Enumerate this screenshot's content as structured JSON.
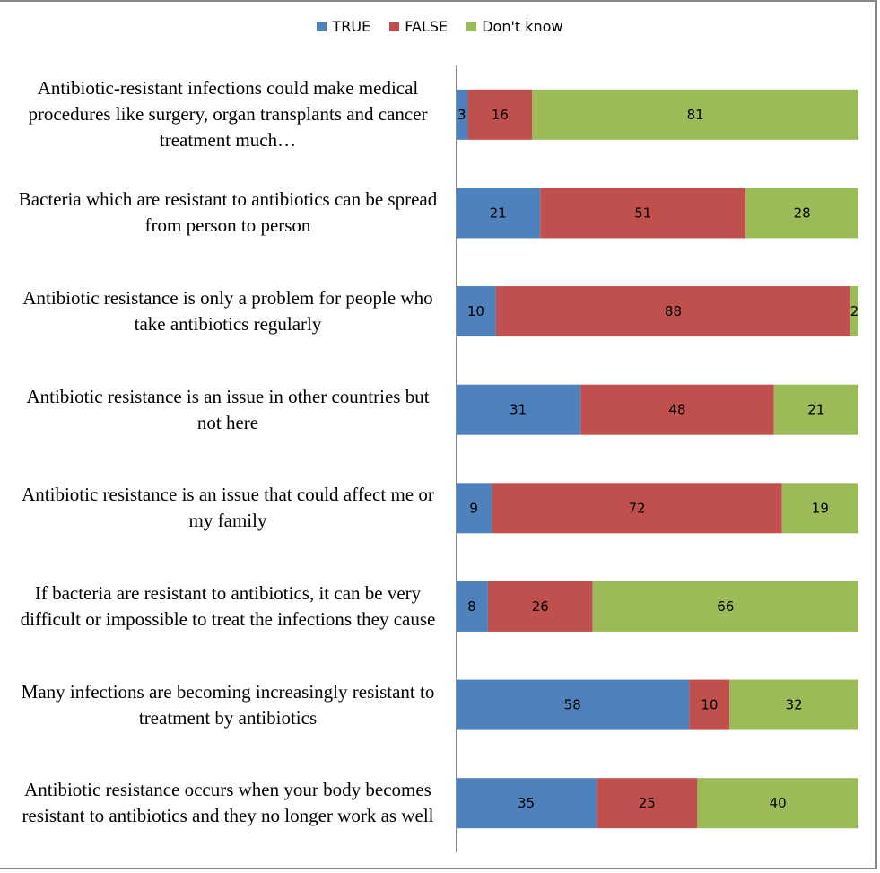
{
  "chart_data": {
    "type": "bar",
    "orientation": "horizontal",
    "stacked": "percent",
    "title": "",
    "xlabel": "",
    "ylabel": "",
    "xlim": [
      0,
      100
    ],
    "grid": false,
    "legend_position": "top-center",
    "categories": [
      "Antibiotic-resistant infections could make medical procedures like surgery, organ transplants and cancer treatment much…",
      "Bacteria which are resistant to antibiotics can be spread from person to person",
      "Antibiotic resistance is only a problem for people who take antibiotics regularly",
      "Antibiotic resistance is an issue in other countries but not here",
      "Antibiotic resistance is an issue that could affect me or my family",
      "If bacteria are resistant to antibiotics, it can be very difficult or impossible to treat the infections they cause",
      "Many infections are becoming increasingly resistant to treatment by antibiotics",
      "Antibiotic resistance occurs when your body becomes resistant to antibiotics and they no longer work as well"
    ],
    "series": [
      {
        "name": "TRUE",
        "color": "#4f81bd",
        "values": [
          3,
          21,
          10,
          31,
          9,
          8,
          58,
          35
        ]
      },
      {
        "name": "FALSE",
        "color": "#c0504d",
        "values": [
          16,
          51,
          88,
          48,
          72,
          26,
          10,
          25
        ]
      },
      {
        "name": "Don't know",
        "color": "#9bbb59",
        "values": [
          81,
          28,
          2,
          21,
          19,
          66,
          32,
          40
        ]
      }
    ]
  }
}
